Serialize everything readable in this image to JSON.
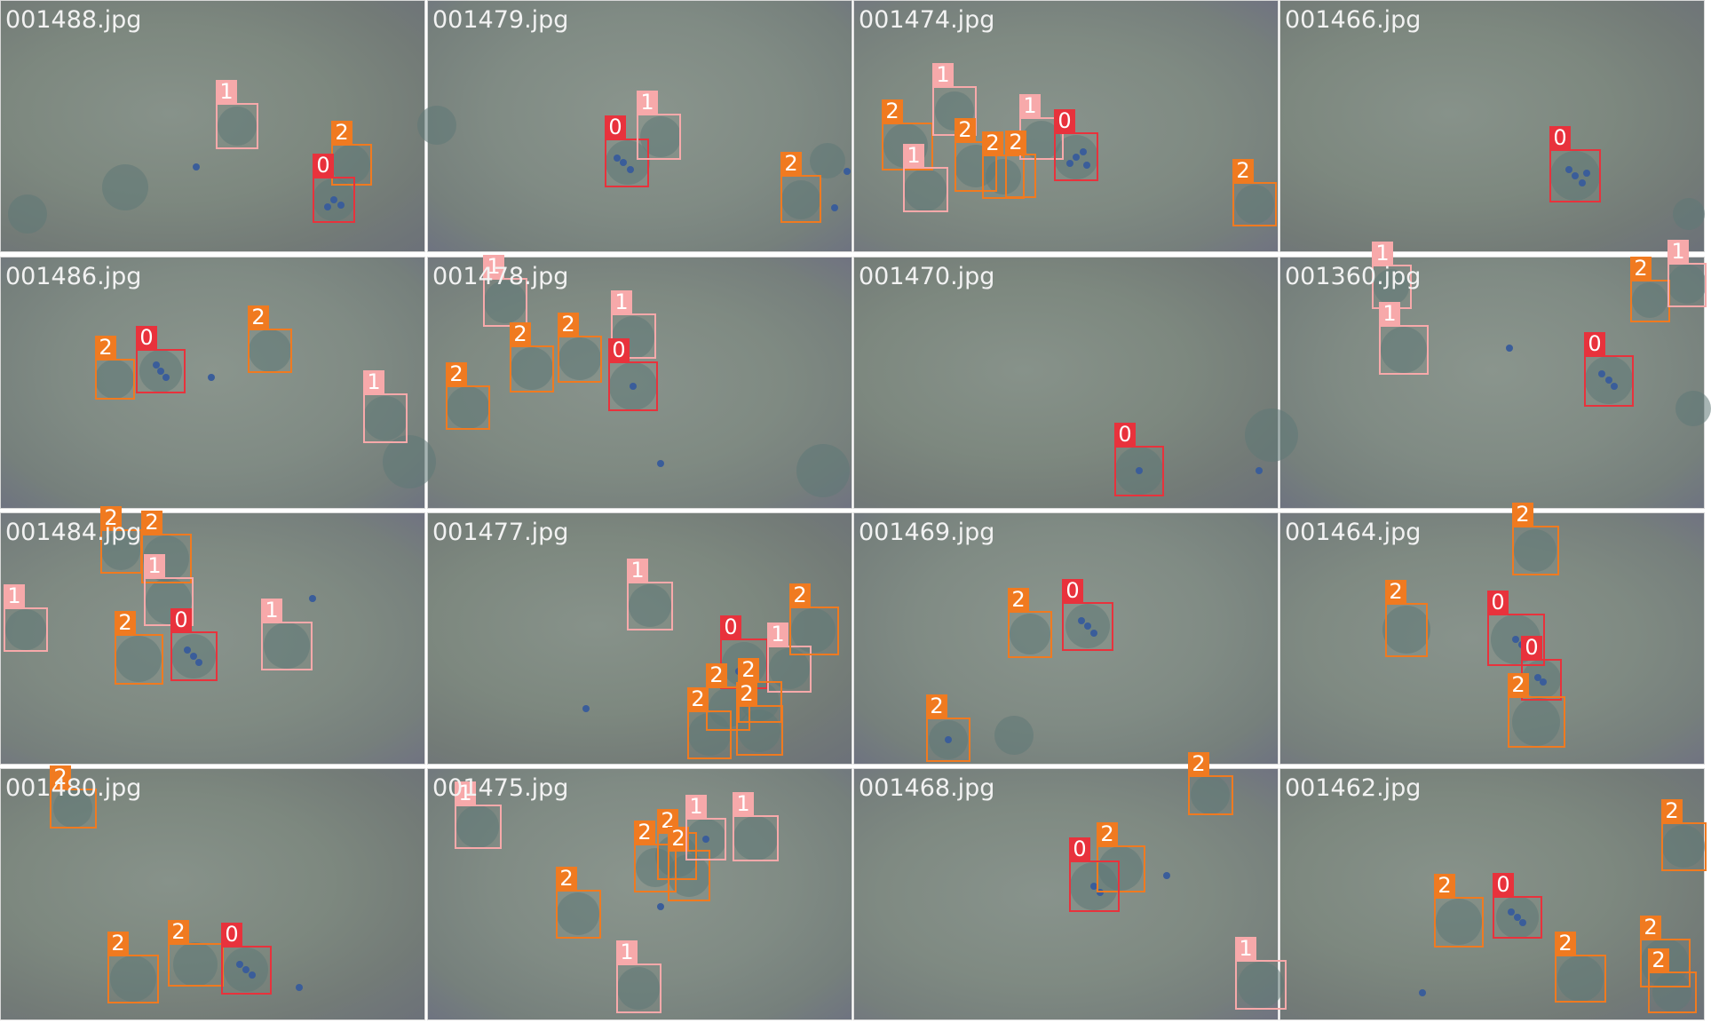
{
  "colors": {
    "class_0": "#e8323c",
    "class_1": "#f7a9aa",
    "class_2": "#f07a20"
  },
  "tiles": [
    {
      "filename": "001488.jpg",
      "labels": [
        "1",
        "2",
        "0"
      ]
    },
    {
      "filename": "001479.jpg",
      "labels": [
        "0",
        "1",
        "2"
      ]
    },
    {
      "filename": "001474.jpg",
      "labels": [
        "2",
        "1",
        "1",
        "2",
        "2",
        "1",
        "2",
        "0",
        "2"
      ]
    },
    {
      "filename": "001466.jpg",
      "labels": [
        "0"
      ]
    },
    {
      "filename": "001486.jpg",
      "labels": [
        "2",
        "0",
        "2",
        "1"
      ]
    },
    {
      "filename": "001478.jpg",
      "labels": [
        "1",
        "2",
        "2",
        "1",
        "0",
        "2"
      ]
    },
    {
      "filename": "001470.jpg",
      "labels": [
        "0"
      ]
    },
    {
      "filename": "001360.jpg",
      "labels": [
        "1",
        "1",
        "2",
        "1",
        "0"
      ]
    },
    {
      "filename": "001484.jpg",
      "labels": [
        "2",
        "2",
        "1",
        "1",
        "2",
        "0",
        "1"
      ]
    },
    {
      "filename": "001477.jpg",
      "labels": [
        "1",
        "0",
        "1",
        "2",
        "2",
        "2",
        "2",
        "2"
      ]
    },
    {
      "filename": "001469.jpg",
      "labels": [
        "2",
        "0",
        "2"
      ]
    },
    {
      "filename": "001464.jpg",
      "labels": [
        "2",
        "2",
        "0",
        "0",
        "2"
      ]
    },
    {
      "filename": "001480.jpg",
      "labels": [
        "2",
        "2",
        "2",
        "0"
      ]
    },
    {
      "filename": "001475.jpg",
      "labels": [
        "1",
        "2",
        "2",
        "2",
        "1",
        "1",
        "1",
        "2"
      ]
    },
    {
      "filename": "001468.jpg",
      "labels": [
        "2",
        "2",
        "0",
        "1"
      ]
    },
    {
      "filename": "001462.jpg",
      "labels": [
        "2",
        "2",
        "0",
        "2",
        "2",
        "2"
      ]
    }
  ]
}
